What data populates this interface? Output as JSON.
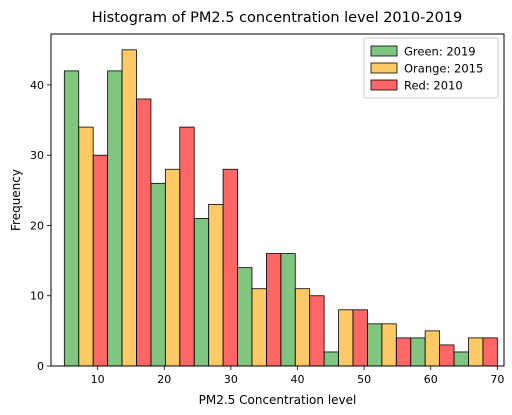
{
  "chart_data": {
    "type": "bar",
    "title": "Histogram of PM2.5 concentration level 2010-2019",
    "xlabel": "PM2.5 Concentration level",
    "ylabel": "Frequency",
    "xlim": [
      3,
      71
    ],
    "ylim": [
      0,
      47.25
    ],
    "x_ticks": [
      10,
      20,
      30,
      40,
      50,
      60,
      70
    ],
    "y_ticks": [
      0,
      10,
      20,
      30,
      40
    ],
    "grid": false,
    "legend_position": "top-right",
    "bin_edges": [
      5,
      11.5,
      18,
      24.5,
      31,
      37.5,
      44,
      50.5,
      57,
      63.5,
      70
    ],
    "series": [
      {
        "name": "Green: 2019",
        "color": "#2ca02c",
        "values": [
          42,
          42,
          26,
          21,
          14,
          16,
          2,
          6,
          4,
          2
        ]
      },
      {
        "name": "Orange: 2015",
        "color": "#ffa500",
        "values": [
          34,
          45,
          28,
          23,
          11,
          11,
          8,
          6,
          5,
          4
        ]
      },
      {
        "name": "Red: 2010",
        "color": "#ff0000",
        "values": [
          30,
          38,
          34,
          28,
          16,
          10,
          8,
          4,
          3,
          4
        ]
      }
    ]
  }
}
